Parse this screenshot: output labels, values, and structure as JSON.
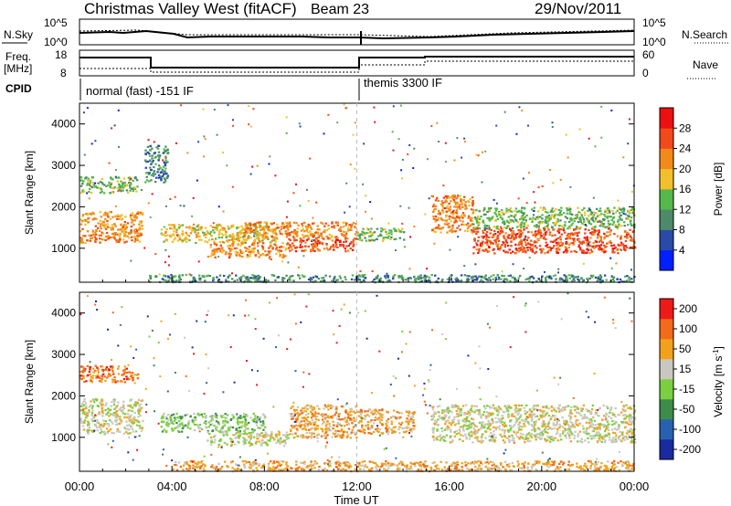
{
  "header": {
    "station": "Christmas Valley West (fitACF)",
    "beam": "Beam 23",
    "date": "29/Nov/2011"
  },
  "strip_panels": {
    "nsky": {
      "label": "N.Sky",
      "ticks": [
        "10^5",
        "10^0"
      ]
    },
    "nsearch": {
      "label": "N.Search",
      "ticks": [
        "10^5",
        "10^0"
      ]
    },
    "freq": {
      "label_line1": "Freq.",
      "label_line2": "[MHz]",
      "ticks": [
        "18",
        "8"
      ]
    },
    "nave": {
      "label": "Nave",
      "ticks": [
        "60",
        "0"
      ]
    },
    "cpid": {
      "label": "CPID",
      "modes": [
        {
          "name": "normal (fast) -151 IF",
          "start": "00:00",
          "end": "12:00"
        },
        {
          "name": "themis 3300 IF",
          "start": "12:00",
          "end": "24:00"
        }
      ]
    }
  },
  "colorbars": {
    "power": {
      "label": "Power [dB]",
      "ticks": [
        "28",
        "24",
        "20",
        "16",
        "12",
        "8",
        "4"
      ],
      "colors": [
        "#0020ff",
        "#2a4aa8",
        "#4d8a6a",
        "#55b84a",
        "#f2c02a",
        "#f28a1a",
        "#f24a1a",
        "#ee1010"
      ]
    },
    "velocity": {
      "label_main": "Velocity [m s",
      "label_sup": "-1",
      "label_close": "]",
      "ticks": [
        "200",
        "100",
        "50",
        "15",
        "-15",
        "-50",
        "-100",
        "-200"
      ],
      "colors": [
        "#1a2aa0",
        "#2a60b0",
        "#3d8c4a",
        "#7ad040",
        "#c8c8c0",
        "#f2a21a",
        "#f26a1a",
        "#ee1a1a"
      ]
    }
  },
  "chart_data": [
    {
      "type": "heatmap",
      "panel": "power",
      "ylabel": "Slant Range [km]",
      "ytick_labels": [
        "1000",
        "2000",
        "3000",
        "4000"
      ],
      "ylim": [
        180,
        4500
      ],
      "xlim": [
        0,
        24
      ],
      "bands": [
        {
          "t0": 0.0,
          "t1": 2.7,
          "r0": 1150,
          "r1": 1900,
          "level": 5
        },
        {
          "t0": 0.0,
          "t1": 2.5,
          "r0": 2350,
          "r1": 2750,
          "level": 3
        },
        {
          "t0": 2.8,
          "t1": 3.8,
          "r0": 2600,
          "r1": 3500,
          "level": 2
        },
        {
          "t0": 3.5,
          "t1": 8.5,
          "r0": 1150,
          "r1": 1600,
          "level": 4
        },
        {
          "t0": 5.5,
          "t1": 9.0,
          "r0": 800,
          "r1": 1150,
          "level": 5
        },
        {
          "t0": 7.0,
          "t1": 12.0,
          "r0": 1250,
          "r1": 1650,
          "level": 5
        },
        {
          "t0": 9.0,
          "t1": 12.0,
          "r0": 950,
          "r1": 1250,
          "level": 6
        },
        {
          "t0": 12.0,
          "t1": 14.0,
          "r0": 1200,
          "r1": 1500,
          "level": 3
        },
        {
          "t0": 15.2,
          "t1": 17.0,
          "r0": 1400,
          "r1": 2300,
          "level": 5
        },
        {
          "t0": 17.0,
          "t1": 24.0,
          "r0": 900,
          "r1": 1500,
          "level": 6
        },
        {
          "t0": 17.0,
          "t1": 24.0,
          "r0": 1500,
          "r1": 2000,
          "level": 3
        },
        {
          "t0": 3.0,
          "t1": 24.0,
          "r0": 200,
          "r1": 380,
          "level": 2
        }
      ]
    },
    {
      "type": "heatmap",
      "panel": "velocity",
      "ylabel": "Slant Range [km]",
      "ytick_labels": [
        "1000",
        "2000",
        "3000",
        "4000"
      ],
      "ylim": [
        180,
        4500
      ],
      "xlim": [
        0,
        24
      ],
      "xlabel": "Time UT",
      "xtick_labels": [
        "00:00",
        "04:00",
        "08:00",
        "12:00",
        "16:00",
        "20:00",
        "00:00"
      ],
      "bands": [
        {
          "t0": 0.0,
          "t1": 2.7,
          "r0": 1100,
          "r1": 1950,
          "level": 4
        },
        {
          "t0": 0.0,
          "t1": 2.5,
          "r0": 2350,
          "r1": 2750,
          "level": 6
        },
        {
          "t0": 3.5,
          "t1": 8.0,
          "r0": 1150,
          "r1": 1600,
          "level": 3
        },
        {
          "t0": 5.5,
          "t1": 9.0,
          "r0": 800,
          "r1": 1150,
          "level": 4
        },
        {
          "t0": 9.0,
          "t1": 12.0,
          "r0": 1000,
          "r1": 1800,
          "level": 5
        },
        {
          "t0": 12.0,
          "t1": 14.5,
          "r0": 1100,
          "r1": 1700,
          "level": 5
        },
        {
          "t0": 15.2,
          "t1": 24.0,
          "r0": 900,
          "r1": 1800,
          "level": 4
        },
        {
          "t0": 4.0,
          "t1": 24.0,
          "r0": 200,
          "r1": 450,
          "level": 5
        }
      ]
    }
  ]
}
